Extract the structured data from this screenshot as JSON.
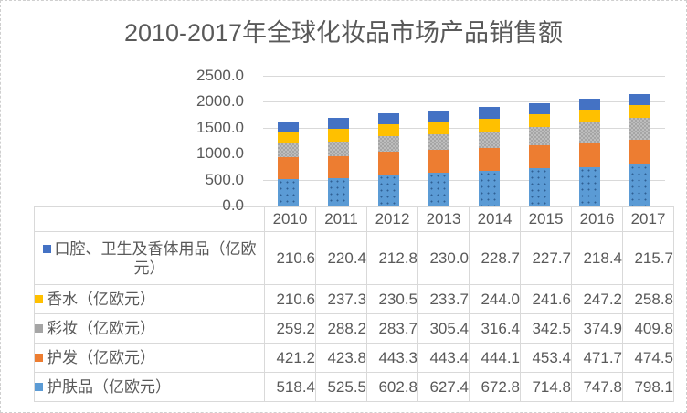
{
  "title": "2010-2017年全球化妆品市场产品销售额",
  "colors": {
    "oral_hygiene": "#4472C4",
    "perfume": "#FFC000",
    "color_cosmetics": "#A5A5A5",
    "hair_care": "#ED7D31",
    "skin_care": "#5B9BD5",
    "gridline": "#d9d9d9",
    "text": "#595959"
  },
  "chart_data": {
    "type": "bar",
    "stacked": true,
    "title": "2010-2017年全球化妆品市场产品销售额",
    "categories": [
      "2010",
      "2011",
      "2012",
      "2013",
      "2014",
      "2015",
      "2016",
      "2017"
    ],
    "series": [
      {
        "key": "oral-hygiene",
        "name": "口腔、卫生及香体用品（亿欧元）",
        "color": "#4472C4",
        "pattern": "solid",
        "values": [
          210.6,
          220.4,
          212.8,
          230.0,
          228.7,
          227.7,
          218.4,
          215.7
        ]
      },
      {
        "key": "perfume",
        "name": "香水（亿欧元）",
        "color": "#FFC000",
        "pattern": "solid",
        "values": [
          210.6,
          237.3,
          230.5,
          233.7,
          244.0,
          241.6,
          247.2,
          258.8
        ]
      },
      {
        "key": "color-cosmetics",
        "name": "彩妆（亿欧元）",
        "color": "#A5A5A5",
        "pattern": "checker",
        "values": [
          259.2,
          288.2,
          283.7,
          305.4,
          316.4,
          342.5,
          374.9,
          409.8
        ]
      },
      {
        "key": "hair-care",
        "name": "护发（亿欧元）",
        "color": "#ED7D31",
        "pattern": "solid",
        "values": [
          421.2,
          423.8,
          443.3,
          443.4,
          444.1,
          453.4,
          471.7,
          474.5
        ]
      },
      {
        "key": "skin-care",
        "name": "护肤品（亿欧元）",
        "color": "#5B9BD5",
        "pattern": "dots",
        "values": [
          518.4,
          525.5,
          602.8,
          627.4,
          672.8,
          714.8,
          747.8,
          798.1
        ]
      }
    ],
    "stack_order": "reverse-of-series (skin-care at bottom, oral-hygiene on top)",
    "y_axis": {
      "min": 0,
      "max": 2500,
      "tick_labels": [
        "0.0",
        "500.0",
        "1000.0",
        "1500.0",
        "2000.0",
        "2500.0"
      ],
      "grid": true
    },
    "value_format": "one-decimal",
    "legend_position": "data-table"
  }
}
